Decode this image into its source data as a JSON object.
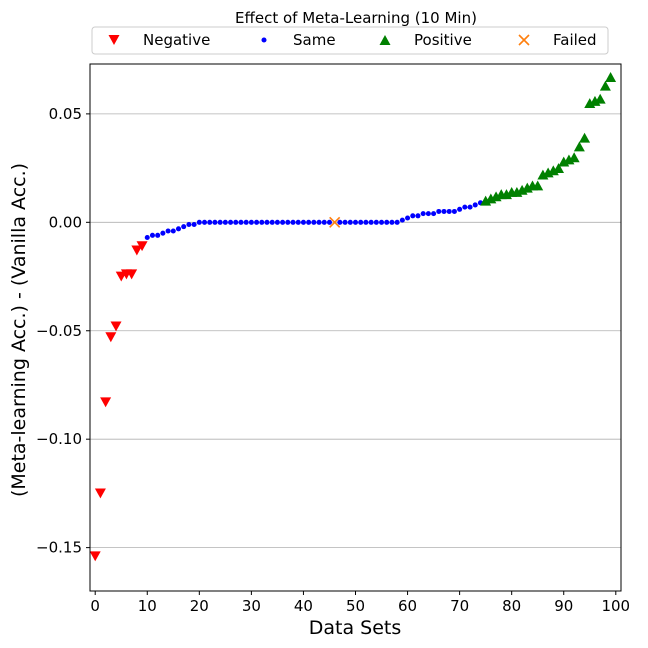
{
  "chart_data": {
    "type": "scatter",
    "title": "Effect of Meta-Learning (10 Min)",
    "xlabel": "Data Sets",
    "ylabel": "(Meta-learning Acc.) - (Vanilla Acc.)",
    "xlim": [
      -1,
      101
    ],
    "ylim": [
      -0.17,
      0.073
    ],
    "xticks": [
      0,
      10,
      20,
      30,
      40,
      50,
      60,
      70,
      80,
      90,
      100
    ],
    "yticks": [
      -0.15,
      -0.1,
      -0.05,
      0.0,
      0.05
    ],
    "ytick_labels": [
      "−0.15",
      "−0.10",
      "−0.05",
      "0.00",
      "0.05"
    ],
    "grid": "horizontal",
    "legend_position": "top",
    "series": [
      {
        "name": "Negative",
        "marker": "triangle-down",
        "color": "#ff0000",
        "points": [
          [
            0,
            -0.154
          ],
          [
            1,
            -0.125
          ],
          [
            2,
            -0.083
          ],
          [
            3,
            -0.053
          ],
          [
            4,
            -0.048
          ],
          [
            5,
            -0.025
          ],
          [
            6,
            -0.024
          ],
          [
            7,
            -0.024
          ],
          [
            8,
            -0.013
          ],
          [
            9,
            -0.011
          ]
        ]
      },
      {
        "name": "Same",
        "marker": "circle",
        "color": "#0000ff",
        "points": [
          [
            10,
            -0.007
          ],
          [
            11,
            -0.006
          ],
          [
            12,
            -0.006
          ],
          [
            13,
            -0.005
          ],
          [
            14,
            -0.004
          ],
          [
            15,
            -0.004
          ],
          [
            16,
            -0.003
          ],
          [
            17,
            -0.002
          ],
          [
            18,
            -0.001
          ],
          [
            19,
            -0.001
          ],
          [
            20,
            0.0
          ],
          [
            21,
            0.0
          ],
          [
            22,
            0.0
          ],
          [
            23,
            0.0
          ],
          [
            24,
            0.0
          ],
          [
            25,
            0.0
          ],
          [
            26,
            0.0
          ],
          [
            27,
            0.0
          ],
          [
            28,
            0.0
          ],
          [
            29,
            0.0
          ],
          [
            30,
            0.0
          ],
          [
            31,
            0.0
          ],
          [
            32,
            0.0
          ],
          [
            33,
            0.0
          ],
          [
            34,
            0.0
          ],
          [
            35,
            0.0
          ],
          [
            36,
            0.0
          ],
          [
            37,
            0.0
          ],
          [
            38,
            0.0
          ],
          [
            39,
            0.0
          ],
          [
            40,
            0.0
          ],
          [
            41,
            0.0
          ],
          [
            42,
            0.0
          ],
          [
            43,
            0.0
          ],
          [
            44,
            0.0
          ],
          [
            45,
            0.0
          ],
          [
            47,
            0.0
          ],
          [
            48,
            0.0
          ],
          [
            49,
            0.0
          ],
          [
            50,
            0.0
          ],
          [
            51,
            0.0
          ],
          [
            52,
            0.0
          ],
          [
            53,
            0.0
          ],
          [
            54,
            0.0
          ],
          [
            55,
            0.0
          ],
          [
            56,
            0.0
          ],
          [
            57,
            0.0
          ],
          [
            58,
            0.0
          ],
          [
            59,
            0.001
          ],
          [
            60,
            0.002
          ],
          [
            61,
            0.003
          ],
          [
            62,
            0.003
          ],
          [
            63,
            0.004
          ],
          [
            64,
            0.004
          ],
          [
            65,
            0.004
          ],
          [
            66,
            0.005
          ],
          [
            67,
            0.005
          ],
          [
            68,
            0.005
          ],
          [
            69,
            0.005
          ],
          [
            70,
            0.006
          ],
          [
            71,
            0.007
          ],
          [
            72,
            0.007
          ],
          [
            73,
            0.008
          ],
          [
            74,
            0.009
          ]
        ]
      },
      {
        "name": "Positive",
        "marker": "triangle-up",
        "color": "#008000",
        "points": [
          [
            75,
            0.01
          ],
          [
            76,
            0.011
          ],
          [
            77,
            0.012
          ],
          [
            78,
            0.013
          ],
          [
            79,
            0.013
          ],
          [
            80,
            0.014
          ],
          [
            81,
            0.014
          ],
          [
            82,
            0.015
          ],
          [
            83,
            0.016
          ],
          [
            84,
            0.017
          ],
          [
            85,
            0.017
          ],
          [
            86,
            0.022
          ],
          [
            87,
            0.023
          ],
          [
            88,
            0.024
          ],
          [
            89,
            0.025
          ],
          [
            90,
            0.028
          ],
          [
            91,
            0.029
          ],
          [
            92,
            0.03
          ],
          [
            93,
            0.035
          ],
          [
            94,
            0.039
          ],
          [
            95,
            0.055
          ],
          [
            96,
            0.056
          ],
          [
            97,
            0.057
          ],
          [
            98,
            0.063
          ],
          [
            99,
            0.067
          ]
        ]
      },
      {
        "name": "Failed",
        "marker": "x",
        "color": "#ff7f0e",
        "points": [
          [
            46,
            0.0
          ]
        ]
      }
    ]
  }
}
